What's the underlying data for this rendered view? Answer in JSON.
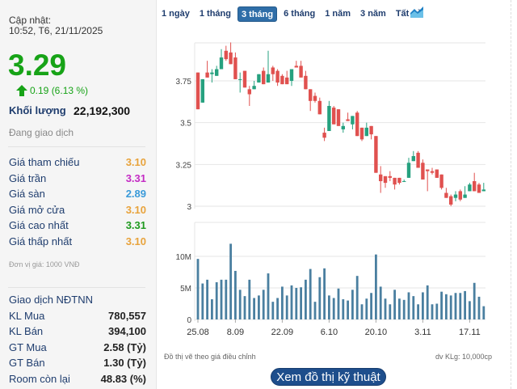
{
  "summary": {
    "update_label": "Cập nhật:",
    "update_time": "10:52, T6, 21/11/2025",
    "price": "3.29",
    "change": "0.19 (6.13 %)",
    "change_icon": "arrow-up-icon",
    "volume_label": "Khối lượng",
    "volume": "22,192,300",
    "status": "Đang giao dịch"
  },
  "prices": [
    {
      "label": "Giá tham chiếu",
      "value": "3.10",
      "color": "#e8a33c"
    },
    {
      "label": "Giá trần",
      "value": "3.31",
      "color": "#c42bc4"
    },
    {
      "label": "Giá sàn",
      "value": "2.89",
      "color": "#3a9ad9"
    },
    {
      "label": "Giá mở cửa",
      "value": "3.10",
      "color": "#e8a33c"
    },
    {
      "label": "Giá cao nhất",
      "value": "3.31",
      "color": "#1f9a1f"
    },
    {
      "label": "Giá thấp nhất",
      "value": "3.10",
      "color": "#e8a33c"
    }
  ],
  "unit_note": "Đơn vị giá: 1000 VNĐ",
  "foreign": {
    "title": "Giao dịch NĐTNN",
    "rows": [
      {
        "label": "KL Mua",
        "value": "780,557"
      },
      {
        "label": "KL Bán",
        "value": "394,100"
      },
      {
        "label": "GT Mua",
        "value": "2.58 (Tỷ)"
      },
      {
        "label": "GT Bán",
        "value": "1.30 (Tỷ)"
      },
      {
        "label": "Room còn lại",
        "value": "48.83 (%)"
      }
    ]
  },
  "tabs": [
    {
      "label": "1 ngày"
    },
    {
      "label": "1 tháng"
    },
    {
      "label": "3 tháng",
      "active": true
    },
    {
      "label": "6 tháng"
    },
    {
      "label": "1 năm"
    },
    {
      "label": "3 năm"
    },
    {
      "label": "Tất cả"
    }
  ],
  "chart_type_icon": "area-chart-icon",
  "footer": {
    "left": "Đồ thị vẽ theo giá điều chỉnh",
    "right": "dv KLg: 10,000cp",
    "button": "Xem đồ thị kỹ thuật"
  },
  "chart_data": [
    {
      "type": "candlestick",
      "ylim": [
        3.0,
        3.98
      ],
      "yticks": [
        "3.75",
        "3.5",
        "3.25",
        "3"
      ],
      "ytick_values": [
        3.75,
        3.5,
        3.25,
        3.0
      ],
      "grid": true,
      "colors": {
        "up": "#26a17f",
        "down": "#e0514f"
      },
      "ohlc": [
        [
          3.8,
          3.8,
          3.58,
          3.58
        ],
        [
          3.62,
          3.76,
          3.62,
          3.76
        ],
        [
          3.8,
          3.87,
          3.77,
          3.77
        ],
        [
          3.79,
          3.82,
          3.74,
          3.8
        ],
        [
          3.78,
          3.84,
          3.78,
          3.82
        ],
        [
          3.82,
          3.94,
          3.82,
          3.89
        ],
        [
          3.93,
          3.96,
          3.87,
          3.88
        ],
        [
          3.92,
          3.98,
          3.85,
          3.85
        ],
        [
          3.89,
          3.92,
          3.76,
          3.76
        ],
        [
          3.76,
          3.8,
          3.68,
          3.76
        ],
        [
          3.81,
          3.81,
          3.71,
          3.71
        ],
        [
          3.7,
          3.72,
          3.6,
          3.67
        ],
        [
          3.7,
          3.75,
          3.7,
          3.72
        ],
        [
          3.74,
          3.79,
          3.74,
          3.79
        ],
        [
          3.81,
          3.83,
          3.73,
          3.73
        ],
        [
          3.74,
          3.93,
          3.74,
          3.79
        ],
        [
          3.83,
          3.84,
          3.75,
          3.79
        ],
        [
          3.81,
          3.82,
          3.72,
          3.74
        ],
        [
          3.78,
          3.79,
          3.73,
          3.73
        ],
        [
          3.77,
          3.81,
          3.73,
          3.73
        ],
        [
          3.75,
          3.82,
          3.72,
          3.82
        ],
        [
          3.84,
          3.87,
          3.83,
          3.83
        ],
        [
          3.84,
          3.87,
          3.77,
          3.77
        ],
        [
          3.78,
          3.81,
          3.7,
          3.7
        ],
        [
          3.7,
          3.7,
          3.57,
          3.63
        ],
        [
          3.66,
          3.68,
          3.62,
          3.63
        ],
        [
          3.63,
          3.65,
          3.55,
          3.55
        ],
        [
          3.44,
          3.47,
          3.39,
          3.41
        ],
        [
          3.45,
          3.63,
          3.45,
          3.6
        ],
        [
          3.59,
          3.6,
          3.49,
          3.49
        ],
        [
          3.58,
          3.58,
          3.48,
          3.48
        ],
        [
          3.46,
          3.5,
          3.44,
          3.48
        ],
        [
          3.52,
          3.56,
          3.51,
          3.51
        ],
        [
          3.49,
          3.54,
          3.46,
          3.54
        ],
        [
          3.56,
          3.57,
          3.42,
          3.42
        ],
        [
          3.47,
          3.47,
          3.39,
          3.4
        ],
        [
          3.42,
          3.5,
          3.42,
          3.47
        ],
        [
          3.48,
          3.48,
          3.4,
          3.43
        ],
        [
          3.42,
          3.42,
          3.2,
          3.2
        ],
        [
          3.19,
          3.24,
          3.08,
          3.15
        ],
        [
          3.18,
          3.18,
          3.11,
          3.14
        ],
        [
          3.18,
          3.21,
          3.15,
          3.17
        ],
        [
          3.17,
          3.17,
          3.1,
          3.13
        ],
        [
          3.17,
          3.17,
          3.13,
          3.14
        ],
        [
          3.15,
          3.16,
          3.15,
          3.15
        ],
        [
          3.17,
          3.29,
          3.17,
          3.26
        ],
        [
          3.27,
          3.33,
          3.27,
          3.3
        ],
        [
          3.32,
          3.33,
          3.23,
          3.23
        ],
        [
          3.26,
          3.28,
          3.16,
          3.16
        ],
        [
          3.22,
          3.22,
          3.09,
          3.21
        ],
        [
          3.21,
          3.23,
          3.19,
          3.2
        ],
        [
          3.22,
          3.22,
          3.17,
          3.17
        ],
        [
          3.19,
          3.19,
          3.1,
          3.11
        ],
        [
          3.08,
          3.11,
          3.05,
          3.05
        ],
        [
          3.06,
          3.07,
          3.0,
          3.01
        ],
        [
          3.05,
          3.09,
          3.03,
          3.07
        ],
        [
          3.09,
          3.1,
          3.03,
          3.04
        ],
        [
          3.05,
          3.12,
          3.05,
          3.07
        ],
        [
          3.09,
          3.14,
          3.09,
          3.13
        ],
        [
          3.15,
          3.2,
          3.09,
          3.09
        ],
        [
          3.13,
          3.14,
          3.08,
          3.08
        ],
        [
          3.09,
          3.14,
          3.09,
          3.1
        ]
      ]
    },
    {
      "type": "bar",
      "ylim": [
        0,
        14
      ],
      "yticks": [
        "10M",
        "5M",
        "0"
      ],
      "ytick_values": [
        10,
        5,
        0
      ],
      "grid": true,
      "color": "#4a7fa0",
      "values": [
        9.6,
        5.7,
        6.3,
        3.2,
        5.9,
        6.3,
        6.3,
        12,
        7.7,
        4.7,
        3.7,
        6.3,
        3.4,
        3.8,
        4.7,
        7.3,
        2.8,
        3.4,
        5.2,
        3.8,
        5.4,
        5.0,
        5.1,
        6.3,
        8.0,
        2.8,
        6.7,
        8.1,
        3.8,
        3.4,
        4.9,
        3.2,
        3.0,
        4.7,
        6.9,
        2.4,
        3.3,
        4.2,
        10.3,
        5.2,
        3.3,
        2.4,
        4.7,
        3.3,
        3.1,
        4.3,
        3.7,
        2.4,
        4.3,
        5.4,
        2.4,
        2.5,
        4.4,
        4.0,
        3.8,
        4.2,
        4.2,
        4.5,
        2.9,
        5.8,
        3.6,
        2.1
      ],
      "xtick_labels": [
        "25.08",
        "8.09",
        "22.09",
        "6.10",
        "20.10",
        "3.11",
        "17.11"
      ],
      "xtick_index": [
        0,
        8,
        18,
        28,
        38,
        48,
        58
      ]
    }
  ]
}
